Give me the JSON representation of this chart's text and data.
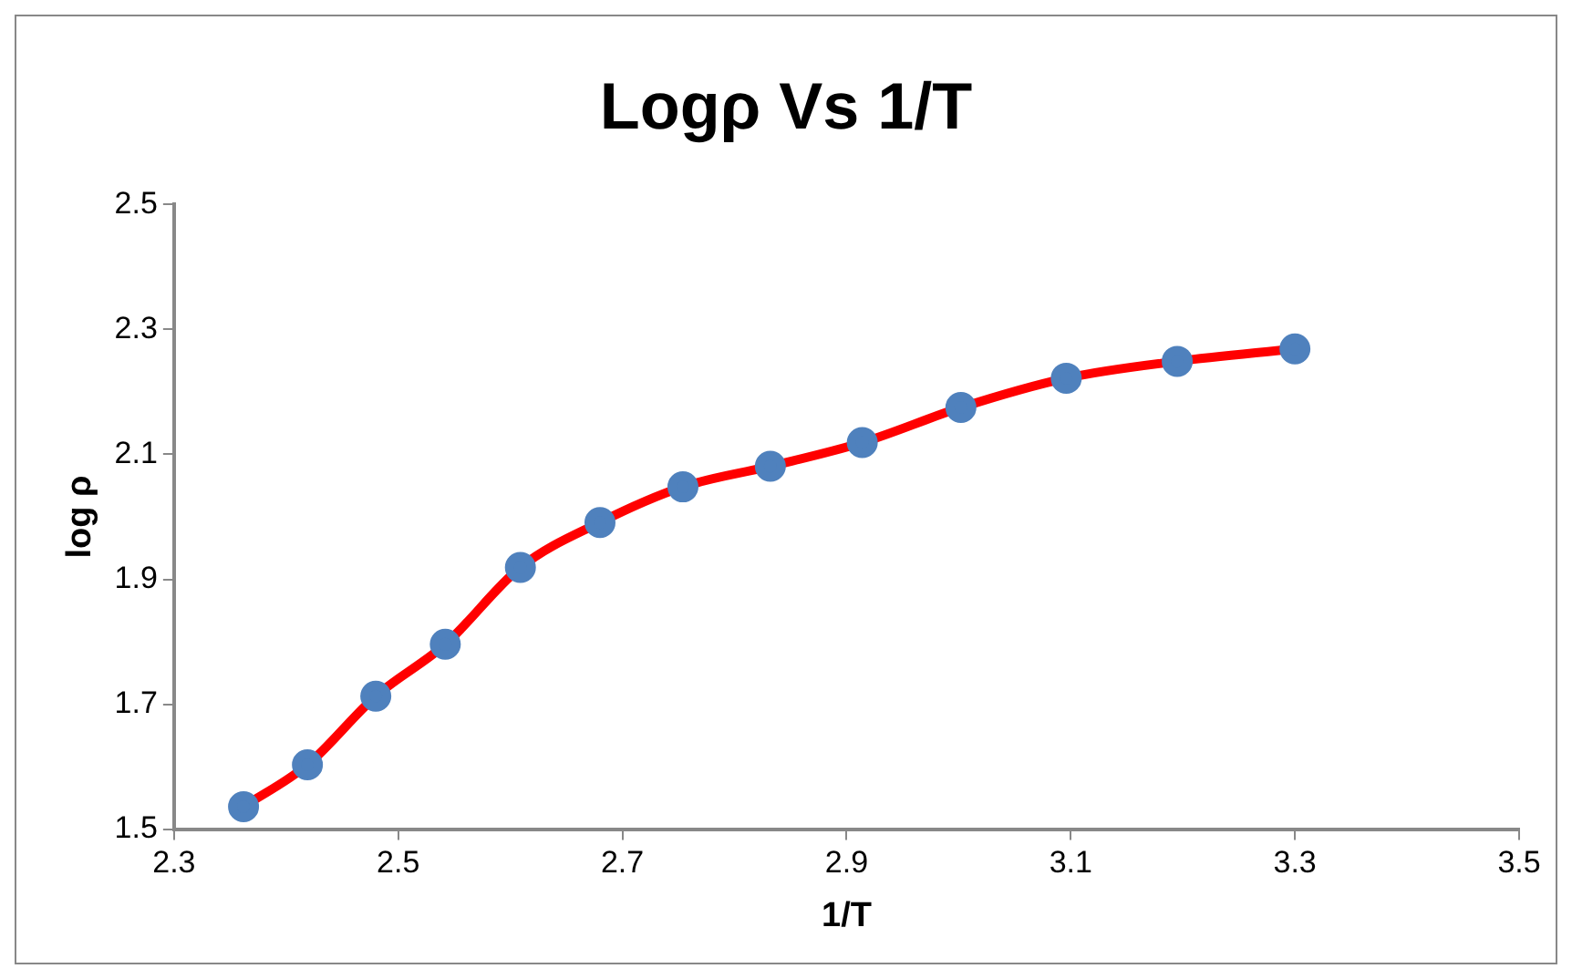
{
  "chart_data": {
    "type": "line",
    "title": "Logρ Vs 1/T",
    "xlabel": "1/T",
    "ylabel": "log ρ",
    "x": [
      2.362,
      2.419,
      2.48,
      2.542,
      2.609,
      2.68,
      2.754,
      2.832,
      2.914,
      3.002,
      3.096,
      3.195,
      3.3
    ],
    "series": [
      {
        "color": "#ff0000",
        "colors": [
          "#4f81bd",
          "#4f81bd",
          "#4f81bd",
          "#4f81bd",
          "#4f81bd",
          "#4f81bd",
          "#4f81bd",
          "#4f81bd",
          "#4f81bd",
          "#4f81bd",
          "#4f81bd",
          "#4f81bd",
          "#4f81bd"
        ],
        "values": [
          1.536,
          1.603,
          1.713,
          1.796,
          1.919,
          1.991,
          2.048,
          2.081,
          2.119,
          2.175,
          2.222,
          2.249,
          2.269
        ]
      }
    ],
    "xlim": [
      2.3,
      3.5
    ],
    "xticks": [
      2.3,
      2.5,
      2.7,
      2.9,
      3.1,
      3.3,
      3.5
    ],
    "ylim": [
      1.5,
      2.5
    ],
    "yticks": [
      1.5,
      1.7,
      1.9,
      2.1,
      2.3,
      2.5
    ],
    "grid": false,
    "legend": false,
    "marker": "circle",
    "line_style": "solid"
  }
}
